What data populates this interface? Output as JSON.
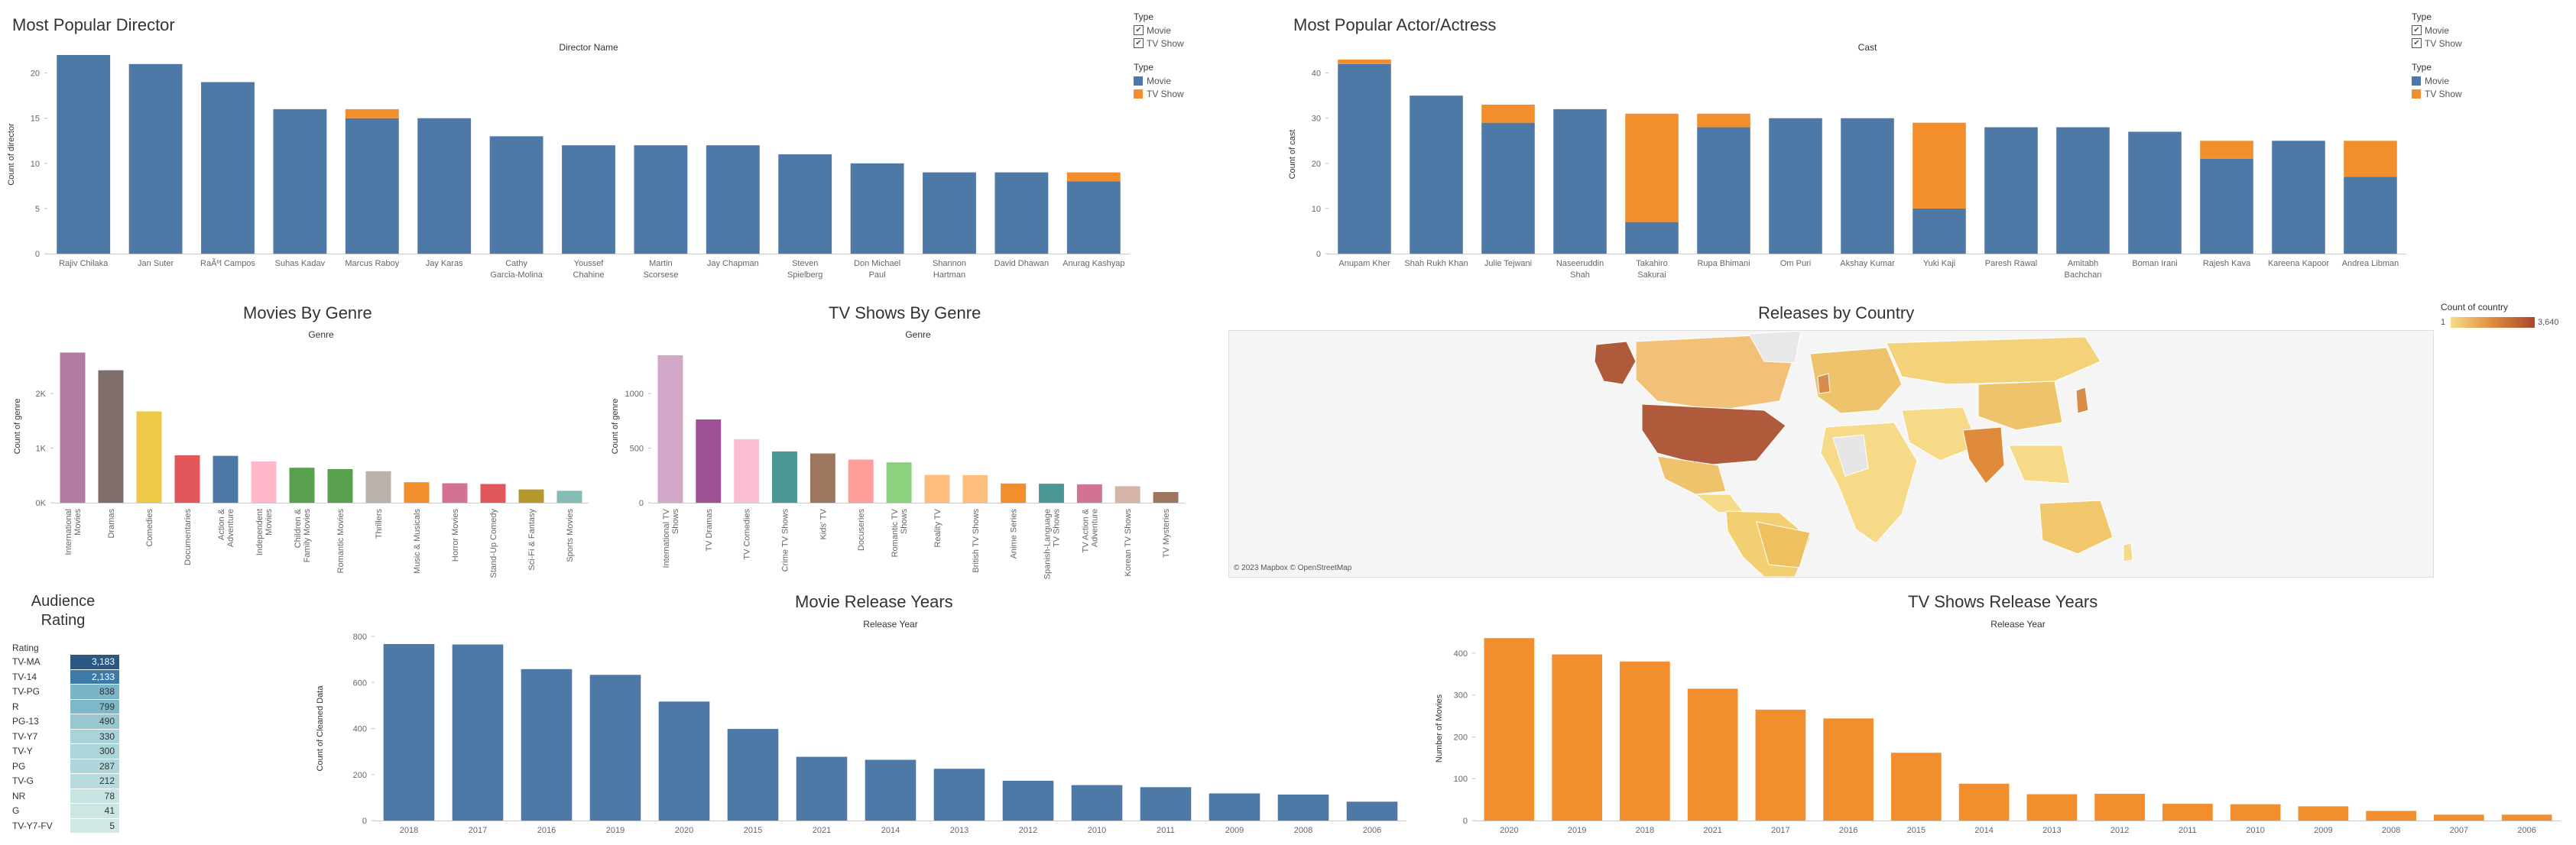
{
  "colors": {
    "movie": "#4e79a7",
    "tv": "#f28e2b",
    "axis": "#999",
    "grid": "#e6e6e6",
    "text": "#666"
  },
  "director": {
    "title": "Most Popular Director",
    "legend": {
      "filter_header": "Type",
      "filter_items": [
        "Movie",
        "TV Show"
      ],
      "color_header": "Type",
      "color_items": [
        "Movie",
        "TV Show"
      ]
    }
  },
  "actor": {
    "title": "Most Popular Actor/Actress",
    "legend": {
      "filter_header": "Type",
      "filter_items": [
        "Movie",
        "TV Show"
      ],
      "color_header": "Type",
      "color_items": [
        "Movie",
        "TV Show"
      ]
    }
  },
  "movies_genre": {
    "title": "Movies By Genre"
  },
  "tv_genre": {
    "title": "TV Shows By Genre"
  },
  "country": {
    "title": "Releases by Country",
    "legend_title": "Count of country",
    "legend_min": "1",
    "legend_max": "3,640",
    "attribution": "© 2023 Mapbox © OpenStreetMap"
  },
  "rating": {
    "title_line1": "Audience",
    "title_line2": "Rating",
    "header": "Rating",
    "rows": [
      {
        "label": "TV-MA",
        "value": "3,183",
        "color": "#2a5783"
      },
      {
        "label": "TV-14",
        "value": "2,133",
        "color": "#3e7aa8"
      },
      {
        "label": "TV-PG",
        "value": "838",
        "color": "#79b4c7"
      },
      {
        "label": "R",
        "value": "799",
        "color": "#7db8c9"
      },
      {
        "label": "PG-13",
        "value": "490",
        "color": "#98c8d2"
      },
      {
        "label": "TV-Y7",
        "value": "330",
        "color": "#a9d3d8"
      },
      {
        "label": "TV-Y",
        "value": "300",
        "color": "#acd5da"
      },
      {
        "label": "PG",
        "value": "287",
        "color": "#aed6db"
      },
      {
        "label": "TV-G",
        "value": "212",
        "color": "#b8dbdd"
      },
      {
        "label": "NR",
        "value": "78",
        "color": "#c6e4e2"
      },
      {
        "label": "G",
        "value": "41",
        "color": "#cbe6e3"
      },
      {
        "label": "TV-Y7-FV",
        "value": "5",
        "color": "#d0e9e5"
      }
    ]
  },
  "movie_years": {
    "title": "Movie Release Years"
  },
  "tv_years": {
    "title": "TV Shows Release Years"
  },
  "chart_data": [
    {
      "id": "director",
      "type": "bar",
      "stacked": true,
      "title": "Director Name",
      "ylabel": "Count of director",
      "ylim": [
        0,
        22
      ],
      "yticks": [
        0,
        5,
        10,
        15,
        20
      ],
      "categories": [
        "Rajiv Chilaka",
        "Jan Suter",
        "RaÃºl Campos",
        "Suhas Kadav",
        "Marcus Raboy",
        "Jay Karas",
        "Cathy Garcia-Molina",
        "Youssef Chahine",
        "Martin Scorsese",
        "Jay Chapman",
        "Steven Spielberg",
        "Don Michael Paul",
        "Shannon Hartman",
        "David Dhawan",
        "Anurag Kashyap"
      ],
      "series": [
        {
          "name": "Movie",
          "values": [
            22,
            21,
            19,
            16,
            15,
            15,
            13,
            12,
            12,
            12,
            11,
            10,
            9,
            9,
            8
          ]
        },
        {
          "name": "TV Show",
          "values": [
            0,
            0,
            0,
            0,
            1,
            0,
            0,
            0,
            0,
            0,
            0,
            0,
            0,
            0,
            1
          ]
        }
      ]
    },
    {
      "id": "actor",
      "type": "bar",
      "stacked": true,
      "title": "Cast",
      "ylabel": "Count of cast",
      "ylim": [
        0,
        44
      ],
      "yticks": [
        0,
        10,
        20,
        30,
        40
      ],
      "categories": [
        "Anupam Kher",
        "Shah Rukh Khan",
        "Julie Tejwani",
        "Naseeruddin Shah",
        "Takahiro Sakurai",
        "Rupa Bhimani",
        "Om Puri",
        "Akshay Kumar",
        "Yuki Kaji",
        "Paresh Rawal",
        "Amitabh Bachchan",
        "Boman Irani",
        "Rajesh Kava",
        "Kareena Kapoor",
        "Andrea Libman"
      ],
      "series": [
        {
          "name": "Movie",
          "values": [
            42,
            35,
            29,
            32,
            7,
            28,
            30,
            30,
            10,
            28,
            28,
            27,
            21,
            25,
            17
          ]
        },
        {
          "name": "TV Show",
          "values": [
            1,
            0,
            4,
            0,
            24,
            3,
            0,
            0,
            19,
            0,
            0,
            0,
            4,
            0,
            8
          ]
        }
      ]
    },
    {
      "id": "movies_genre",
      "type": "bar",
      "title": "Genre",
      "ylabel": "Count of genre",
      "ylim": [
        0,
        2800
      ],
      "yticks": [
        0,
        1000,
        2000
      ],
      "ytick_labels": [
        "0K",
        "1K",
        "2K"
      ],
      "categories": [
        "International Movies",
        "Dramas",
        "Comedies",
        "Documentaries",
        "Action & Adventure",
        "Independent Movies",
        "Children & Family Movies",
        "Romantic Movies",
        "Thrillers",
        "Music & Musicals",
        "Horror Movies",
        "Stand-Up Comedy",
        "Sci-Fi & Fantasy",
        "Sports Movies"
      ],
      "values": [
        2752,
        2427,
        1674,
        869,
        859,
        756,
        641,
        616,
        577,
        375,
        357,
        343,
        243,
        219
      ],
      "colors": [
        "#b07aa1",
        "#7f6d6c",
        "#edc948",
        "#e15759",
        "#4e79a7",
        "#ffb7c9",
        "#59a14f",
        "#59a14f",
        "#bab0ac",
        "#f28e2b",
        "#d37295",
        "#e15759",
        "#b6992d",
        "#86bcb6"
      ]
    },
    {
      "id": "tv_genre",
      "type": "bar",
      "title": "Genre",
      "ylabel": "Count of genre",
      "ylim": [
        0,
        1400
      ],
      "yticks": [
        0,
        500,
        1000
      ],
      "categories": [
        "International TV Shows",
        "TV Dramas",
        "TV Comedies",
        "Crime TV Shows",
        "Kids' TV",
        "Docuseries",
        "Romantic TV Shows",
        "Reality TV",
        "British TV Shows",
        "Anime Series",
        "Spanish-Language TV Shows",
        "TV Action & Adventure",
        "Korean TV Shows",
        "TV Mysteries"
      ],
      "values": [
        1351,
        763,
        581,
        470,
        451,
        395,
        370,
        255,
        253,
        176,
        174,
        168,
        151,
        98
      ],
      "colors": [
        "#d4a6c8",
        "#a05195",
        "#fabfd2",
        "#499894",
        "#9d7660",
        "#ff9d9a",
        "#8cd17d",
        "#ffbe7d",
        "#ffbe7d",
        "#f28e2b",
        "#499894",
        "#d37295",
        "#d7b5a6",
        "#9d7660"
      ]
    },
    {
      "id": "movie_years",
      "type": "bar",
      "title": "Release Year",
      "ylabel": "Count of Cleaned Data",
      "ylim": [
        0,
        800
      ],
      "yticks": [
        0,
        200,
        400,
        600,
        800
      ],
      "categories": [
        "2018",
        "2017",
        "2016",
        "2019",
        "2020",
        "2015",
        "2021",
        "2014",
        "2013",
        "2012",
        "2010",
        "2011",
        "2009",
        "2008",
        "2006"
      ],
      "values": [
        767,
        765,
        658,
        633,
        517,
        398,
        277,
        264,
        225,
        173,
        154,
        145,
        118,
        113,
        82
      ],
      "color": "#4e79a7"
    },
    {
      "id": "tv_years",
      "type": "bar",
      "title": "Release Year",
      "ylabel": "Number of Movies",
      "ylim": [
        0,
        440
      ],
      "yticks": [
        0,
        100,
        200,
        300,
        400
      ],
      "categories": [
        "2020",
        "2019",
        "2018",
        "2021",
        "2017",
        "2016",
        "2015",
        "2014",
        "2013",
        "2012",
        "2011",
        "2010",
        "2009",
        "2008",
        "2007",
        "2006"
      ],
      "values": [
        436,
        397,
        380,
        315,
        265,
        244,
        162,
        88,
        63,
        64,
        40,
        39,
        34,
        23,
        14,
        14
      ],
      "color": "#f28e2b"
    }
  ]
}
